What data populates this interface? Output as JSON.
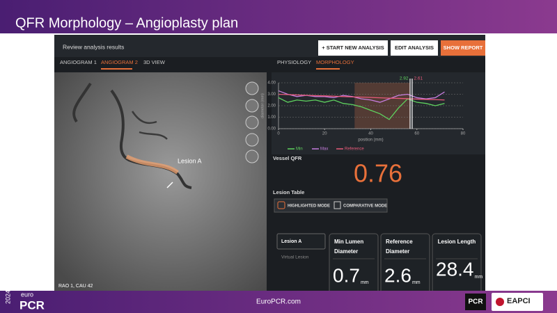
{
  "slide": {
    "title": "QFR Morphology – Angioplasty plan",
    "footer": "EuroPCR.com",
    "logo_year": "2024",
    "logo_euro": "euro",
    "logo_pcr": "PCR",
    "logo_pcr2": "PCR",
    "logo_eapci": "EAPCI"
  },
  "app": {
    "header": "Review analysis results",
    "buttons": [
      "+ START NEW ANALYSIS",
      "EDIT ANALYSIS",
      "SHOW REPORT"
    ],
    "left_tabs": [
      "ANGIOGRAM 1",
      "ANGIOGRAM 2",
      "3D VIEW"
    ],
    "right_tabs": [
      "PHYSIOLOGY",
      "MORPHOLOGY"
    ],
    "lesion_label": "Lesion A",
    "view_label": "RAO 1, CAU 42",
    "vessel_qfr_label": "Vessel QFR",
    "vessel_qfr": "0.76",
    "lesion_table_label": "Lesion Table",
    "modes": [
      "HIGHLIGHTED MODE",
      "COMPARATIVE MODE"
    ],
    "lesion_list": [
      "Lesion A",
      "Virtual Lesion"
    ],
    "cards": [
      {
        "title_1": "Min Lumen",
        "title_2": "Diameter",
        "value": "0.7",
        "unit": "mm"
      },
      {
        "title_1": "Reference",
        "title_2": "Diameter",
        "value": "2.6",
        "unit": "mm"
      },
      {
        "title_1": "Lesion Length",
        "title_2": "",
        "value": "28.4",
        "unit": "mm"
      }
    ]
  },
  "chart": {
    "type": "line",
    "xlabel": "position (mm)",
    "ylabel": "diameter (mm)",
    "xlim": [
      0,
      80
    ],
    "ylim": [
      0,
      4
    ],
    "xticks": [
      0,
      20,
      40,
      60,
      80
    ],
    "yticks": [
      {
        "value": 0,
        "label": "0.00"
      },
      {
        "value": 1,
        "label": "1.00"
      },
      {
        "value": 2,
        "label": "2.00"
      },
      {
        "value": 3,
        "label": "3.00"
      },
      {
        "value": 4,
        "label": "4.00"
      }
    ],
    "x": [
      0,
      4,
      8,
      12,
      16,
      20,
      24,
      28,
      32,
      36,
      40,
      44,
      48,
      52,
      56,
      60,
      64,
      68,
      72
    ],
    "series": [
      {
        "name": "Min",
        "color": "#5fd35f",
        "values": [
          2.7,
          2.3,
          2.5,
          2.4,
          2.5,
          2.3,
          2.5,
          2.2,
          2.1,
          1.9,
          1.6,
          1.3,
          0.8,
          1.8,
          2.6,
          2.3,
          2.2,
          2.0,
          2.2
        ]
      },
      {
        "name": "Max",
        "color": "#c77ee0",
        "values": [
          3.3,
          3.0,
          2.8,
          2.9,
          2.8,
          2.8,
          2.7,
          2.9,
          2.8,
          2.6,
          2.5,
          2.3,
          2.6,
          2.9,
          3.0,
          2.7,
          2.6,
          2.7,
          3.2
        ]
      },
      {
        "name": "Reference",
        "color": "#e85a7a",
        "values": [
          3.0,
          2.97,
          2.94,
          2.91,
          2.88,
          2.86,
          2.83,
          2.8,
          2.77,
          2.75,
          2.72,
          2.69,
          2.66,
          2.64,
          2.61,
          2.58,
          2.55,
          2.53,
          2.5
        ]
      }
    ],
    "highlight_range": [
      33,
      57
    ],
    "cursor": {
      "x": 57.5,
      "values": [
        2.92,
        2.61
      ]
    },
    "grid": true
  }
}
